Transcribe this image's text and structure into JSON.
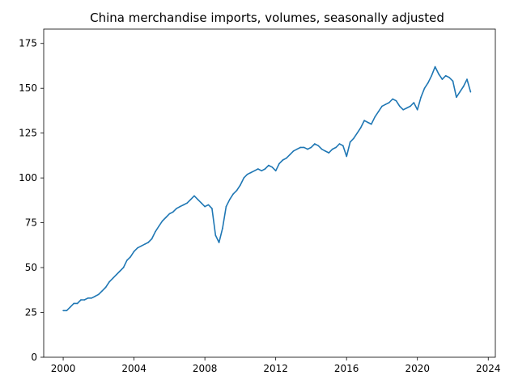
{
  "chart_data": {
    "type": "line",
    "title": "China merchandise imports, volumes, seasonally adjusted",
    "xlabel": "",
    "ylabel": "",
    "xlim": [
      1998.9,
      2024.4
    ],
    "ylim": [
      0,
      183
    ],
    "x_ticks": [
      {
        "value": 2000,
        "label": "2000"
      },
      {
        "value": 2004,
        "label": "2004"
      },
      {
        "value": 2008,
        "label": "2008"
      },
      {
        "value": 2012,
        "label": "2012"
      },
      {
        "value": 2016,
        "label": "2016"
      },
      {
        "value": 2020,
        "label": "2020"
      },
      {
        "value": 2024,
        "label": "2024"
      }
    ],
    "y_ticks": [
      {
        "value": 0,
        "label": "0"
      },
      {
        "value": 25,
        "label": "25"
      },
      {
        "value": 50,
        "label": "50"
      },
      {
        "value": 75,
        "label": "75"
      },
      {
        "value": 100,
        "label": "100"
      },
      {
        "value": 125,
        "label": "125"
      },
      {
        "value": 150,
        "label": "150"
      },
      {
        "value": 175,
        "label": "175"
      }
    ],
    "grid": false,
    "legend": "none",
    "colors": {
      "line": "#1f77b4",
      "axes": "#000000",
      "background": "#ffffff"
    },
    "series": [
      {
        "x": [
          2000.0,
          2000.2,
          2000.4,
          2000.6,
          2000.8,
          2001.0,
          2001.2,
          2001.4,
          2001.6,
          2001.8,
          2002.0,
          2002.2,
          2002.4,
          2002.6,
          2002.8,
          2003.0,
          2003.2,
          2003.4,
          2003.6,
          2003.8,
          2004.0,
          2004.2,
          2004.4,
          2004.6,
          2004.8,
          2005.0,
          2005.2,
          2005.4,
          2005.6,
          2005.8,
          2006.0,
          2006.2,
          2006.4,
          2006.6,
          2006.8,
          2007.0,
          2007.2,
          2007.4,
          2007.6,
          2007.8,
          2008.0,
          2008.2,
          2008.4,
          2008.6,
          2008.8,
          2009.0,
          2009.2,
          2009.4,
          2009.6,
          2009.8,
          2010.0,
          2010.2,
          2010.4,
          2010.6,
          2010.8,
          2011.0,
          2011.2,
          2011.4,
          2011.6,
          2011.8,
          2012.0,
          2012.2,
          2012.4,
          2012.6,
          2012.8,
          2013.0,
          2013.2,
          2013.4,
          2013.6,
          2013.8,
          2014.0,
          2014.2,
          2014.4,
          2014.6,
          2014.8,
          2015.0,
          2015.2,
          2015.4,
          2015.6,
          2015.8,
          2016.0,
          2016.2,
          2016.4,
          2016.6,
          2016.8,
          2017.0,
          2017.2,
          2017.4,
          2017.6,
          2017.8,
          2018.0,
          2018.2,
          2018.4,
          2018.6,
          2018.8,
          2019.0,
          2019.2,
          2019.4,
          2019.6,
          2019.8,
          2020.0,
          2020.2,
          2020.4,
          2020.6,
          2020.8,
          2021.0,
          2021.2,
          2021.4,
          2021.6,
          2021.8,
          2022.0,
          2022.2,
          2022.4,
          2022.6,
          2022.8,
          2023.0
        ],
        "values": [
          26,
          26,
          28,
          30,
          30,
          32,
          32,
          33,
          33,
          34,
          35,
          37,
          39,
          42,
          44,
          46,
          48,
          50,
          54,
          56,
          59,
          61,
          62,
          63,
          64,
          66,
          70,
          73,
          76,
          78,
          80,
          81,
          83,
          84,
          85,
          86,
          88,
          90,
          88,
          86,
          84,
          85,
          83,
          68,
          64,
          72,
          84,
          88,
          91,
          93,
          96,
          100,
          102,
          103,
          104,
          105,
          104,
          105,
          107,
          106,
          104,
          108,
          110,
          111,
          113,
          115,
          116,
          117,
          117,
          116,
          117,
          119,
          118,
          116,
          115,
          114,
          116,
          117,
          119,
          118,
          112,
          120,
          122,
          125,
          128,
          132,
          131,
          130,
          134,
          137,
          140,
          141,
          142,
          144,
          143,
          140,
          138,
          139,
          140,
          142,
          138,
          145,
          150,
          153,
          157,
          162,
          158,
          155,
          157,
          156,
          154,
          145,
          148,
          151,
          155,
          148
        ]
      }
    ]
  }
}
